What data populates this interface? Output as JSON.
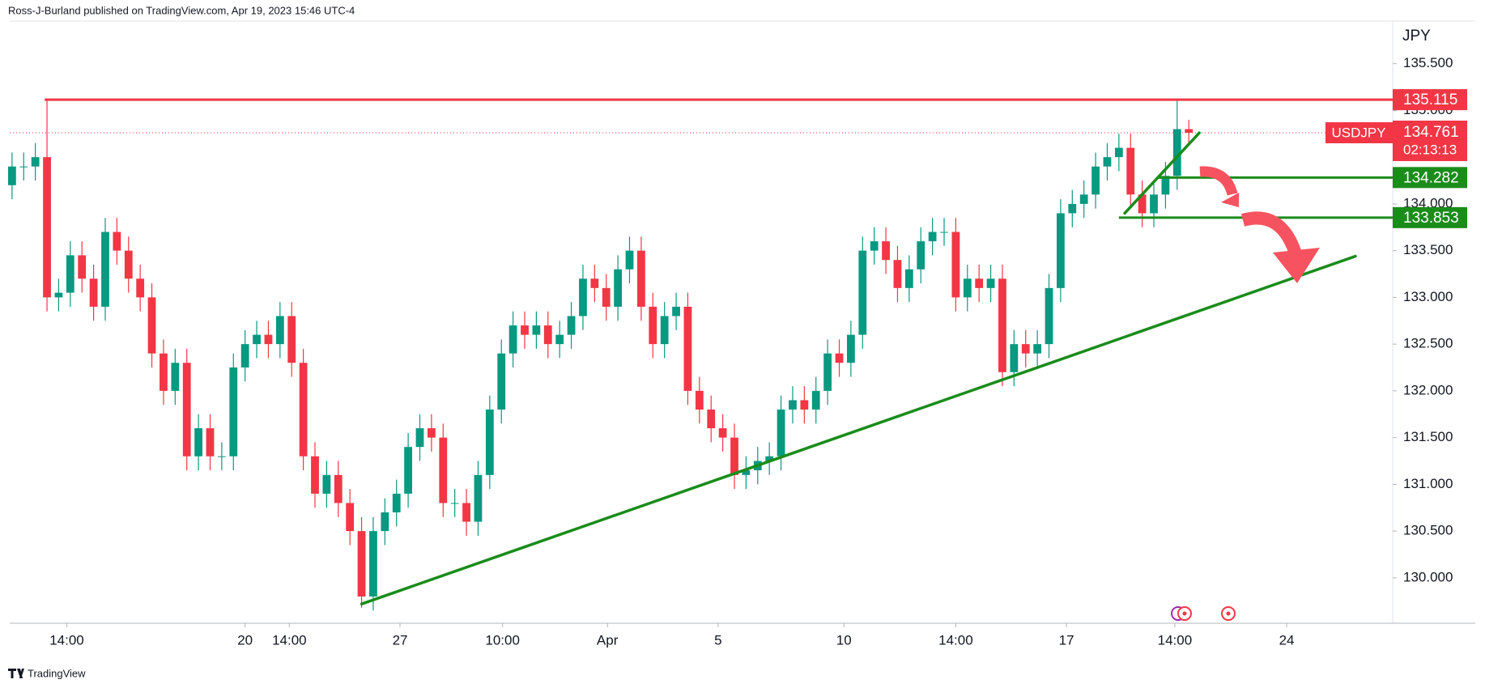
{
  "chart_data": {
    "type": "candlestick",
    "header": "Ross-J-Burland published on TradingView.com, Apr 19, 2023 15:46 UTC-4",
    "currency": "JPY",
    "symbol": "USDJPY",
    "countdown": "02:13:13",
    "brand": "TradingView",
    "up_color": "#089981",
    "down_color": "#f23645",
    "x": [
      0,
      1,
      2,
      3,
      4,
      5,
      6,
      7,
      8,
      9,
      10,
      11,
      12,
      13,
      14,
      15,
      16,
      17,
      18,
      19,
      20,
      21,
      22,
      23,
      24,
      25,
      26,
      27,
      28,
      29,
      30,
      31,
      32,
      33,
      34,
      35,
      36,
      37,
      38,
      39,
      40,
      41,
      42,
      43,
      44,
      45,
      46,
      47,
      48,
      49,
      50,
      51,
      52,
      53,
      54,
      55,
      56,
      57,
      58,
      59,
      60,
      61,
      62,
      63,
      64,
      65,
      66,
      67,
      68,
      69,
      70,
      71,
      72,
      73,
      74,
      75,
      76,
      77,
      78,
      79,
      80,
      81,
      82,
      83,
      84,
      85,
      86,
      87,
      88,
      89,
      90,
      91,
      92,
      93,
      94,
      95,
      96,
      97,
      98,
      99,
      100,
      101
    ],
    "open": [
      134.2,
      134.4,
      134.4,
      134.5,
      133.0,
      133.05,
      133.45,
      133.2,
      132.9,
      133.7,
      133.5,
      133.2,
      133.0,
      132.4,
      132.0,
      132.3,
      131.3,
      131.6,
      131.3,
      131.3,
      132.25,
      132.5,
      132.6,
      132.5,
      132.8,
      132.3,
      131.3,
      130.9,
      131.1,
      130.8,
      130.5,
      129.8,
      130.5,
      130.7,
      130.9,
      131.4,
      131.6,
      131.5,
      130.8,
      130.8,
      130.6,
      131.1,
      131.8,
      132.4,
      132.7,
      132.6,
      132.7,
      132.5,
      132.6,
      132.8,
      133.2,
      133.1,
      132.9,
      133.3,
      133.5,
      132.9,
      132.5,
      132.8,
      132.9,
      132.0,
      131.8,
      131.6,
      131.5,
      131.1,
      131.15,
      131.25,
      131.3,
      131.8,
      131.9,
      131.8,
      132.0,
      132.4,
      132.3,
      132.6,
      133.5,
      133.6,
      133.4,
      133.1,
      133.3,
      133.6,
      133.7,
      133.7,
      133.0,
      133.2,
      133.1,
      133.2,
      132.2,
      132.5,
      132.4,
      132.5,
      133.1,
      133.9,
      134.0,
      134.1,
      134.4,
      134.5,
      134.6,
      134.1,
      133.9,
      134.1,
      134.3,
      134.8
    ],
    "high": [
      134.55,
      134.55,
      134.65,
      135.115,
      133.2,
      133.6,
      133.6,
      133.35,
      133.85,
      133.85,
      133.65,
      133.35,
      133.15,
      132.55,
      132.45,
      132.45,
      131.75,
      131.75,
      131.45,
      132.4,
      132.65,
      132.75,
      132.75,
      132.95,
      132.95,
      132.45,
      131.45,
      131.25,
      131.25,
      130.95,
      130.65,
      130.65,
      130.85,
      131.05,
      131.55,
      131.75,
      131.75,
      131.65,
      130.95,
      130.95,
      131.25,
      131.95,
      132.55,
      132.85,
      132.85,
      132.85,
      132.85,
      132.75,
      132.95,
      133.35,
      133.35,
      133.25,
      133.45,
      133.65,
      133.65,
      133.05,
      132.95,
      133.05,
      133.05,
      132.15,
      131.95,
      131.75,
      131.65,
      131.3,
      131.4,
      131.45,
      131.95,
      132.05,
      132.05,
      132.15,
      132.55,
      132.55,
      132.75,
      133.65,
      133.75,
      133.75,
      133.55,
      133.45,
      133.75,
      133.85,
      133.85,
      133.85,
      133.35,
      133.35,
      133.35,
      133.35,
      132.65,
      132.65,
      132.65,
      133.25,
      134.05,
      134.15,
      134.25,
      134.55,
      134.65,
      134.75,
      134.75,
      134.25,
      134.25,
      134.45,
      135.115,
      134.9
    ],
    "low": [
      134.05,
      134.25,
      134.25,
      132.85,
      132.85,
      132.9,
      133.05,
      132.75,
      132.75,
      133.35,
      133.05,
      132.85,
      132.25,
      131.85,
      131.85,
      131.15,
      131.15,
      131.15,
      131.15,
      131.15,
      132.1,
      132.35,
      132.35,
      132.35,
      132.15,
      131.15,
      130.75,
      130.75,
      130.65,
      130.35,
      129.68,
      129.65,
      130.35,
      130.55,
      130.75,
      131.25,
      131.35,
      130.65,
      130.65,
      130.45,
      130.45,
      130.95,
      131.65,
      132.25,
      132.45,
      132.45,
      132.35,
      132.35,
      132.45,
      132.65,
      132.95,
      132.75,
      132.75,
      133.15,
      132.75,
      132.35,
      132.35,
      132.65,
      131.85,
      131.65,
      131.45,
      131.35,
      130.95,
      130.95,
      131.0,
      131.1,
      131.15,
      131.65,
      131.65,
      131.65,
      131.85,
      132.15,
      132.15,
      132.45,
      133.35,
      133.25,
      132.95,
      132.95,
      133.15,
      133.45,
      133.55,
      132.85,
      132.85,
      132.95,
      132.95,
      132.05,
      132.05,
      132.25,
      132.25,
      132.35,
      132.95,
      133.75,
      133.85,
      133.95,
      134.25,
      134.35,
      133.95,
      133.75,
      133.75,
      133.95,
      134.15,
      134.65
    ],
    "close": [
      134.4,
      134.4,
      134.5,
      133.0,
      133.05,
      133.45,
      133.2,
      132.9,
      133.7,
      133.5,
      133.2,
      133.0,
      132.4,
      132.0,
      132.3,
      131.3,
      131.6,
      131.3,
      131.3,
      132.25,
      132.5,
      132.6,
      132.5,
      132.8,
      132.3,
      131.3,
      130.9,
      131.1,
      130.8,
      130.5,
      129.8,
      130.5,
      130.7,
      130.9,
      131.4,
      131.6,
      131.5,
      130.8,
      130.8,
      130.6,
      131.1,
      131.8,
      132.4,
      132.7,
      132.6,
      132.7,
      132.5,
      132.6,
      132.8,
      133.2,
      133.1,
      132.9,
      133.3,
      133.5,
      132.9,
      132.5,
      132.8,
      132.9,
      132.0,
      131.8,
      131.6,
      131.5,
      131.1,
      131.15,
      131.25,
      131.3,
      131.8,
      131.9,
      131.8,
      132.0,
      132.4,
      132.3,
      132.6,
      133.5,
      133.6,
      133.4,
      133.1,
      133.3,
      133.6,
      133.7,
      133.7,
      133.0,
      133.2,
      133.1,
      133.2,
      132.2,
      132.5,
      132.4,
      132.5,
      133.1,
      133.9,
      134.0,
      134.1,
      134.4,
      134.5,
      134.6,
      134.1,
      133.9,
      134.1,
      134.3,
      134.8,
      134.761
    ],
    "xlim": [
      -0.2,
      118.5
    ],
    "xticks": [
      {
        "value": 4.7,
        "label": "14:00"
      },
      20,
      {
        "value": 23.8,
        "label": "14:00"
      },
      {
        "value": 33.3,
        "label": "27"
      },
      {
        "value": 42.1,
        "label": "10:00"
      },
      {
        "value": 51.1,
        "label": "Apr"
      },
      {
        "value": 60.6,
        "label": "5"
      },
      {
        "value": 71.4,
        "label": "10"
      },
      {
        "value": 81,
        "label": "14:00"
      },
      {
        "value": 90.5,
        "label": "17"
      },
      {
        "value": 99.8,
        "label": "14:00"
      },
      {
        "value": 109.4,
        "label": "24"
      }
    ],
    "ylim": [
      129.514,
      135.956
    ],
    "yticks": [
      {
        "value": 130,
        "label": "130.000"
      },
      {
        "value": 130.5,
        "label": "130.500"
      },
      {
        "value": 131,
        "label": "131.000"
      },
      {
        "value": 131.5,
        "label": "131.500"
      },
      {
        "value": 132,
        "label": "132.000"
      },
      {
        "value": 132.5,
        "label": "132.500"
      },
      {
        "value": 133,
        "label": "133.000"
      },
      {
        "value": 133.5,
        "label": "133.500"
      },
      {
        "value": 134,
        "label": "134.000"
      },
      {
        "value": 134.5,
        "label": "134.500"
      },
      {
        "value": 135,
        "label": "135.000"
      },
      {
        "value": 135.5,
        "label": "135.500"
      }
    ],
    "last_price": 134.761,
    "hlines": [
      {
        "value": 135.115,
        "from": 2.8,
        "color": "#f23645"
      },
      {
        "value": 134.282,
        "from": 98.4,
        "color": "#1a8c1a"
      },
      {
        "value": 133.853,
        "from": 95,
        "color": "#1a8c1a"
      }
    ],
    "trendlines": [
      {
        "start": [
          30,
          129.72
        ],
        "end": [
          115.3,
          133.44
        ],
        "color": "#1a8c1a"
      },
      {
        "start": [
          95.5,
          133.9
        ],
        "end": [
          101.9,
          134.76
        ],
        "color": "#1a8c1a"
      }
    ]
  }
}
